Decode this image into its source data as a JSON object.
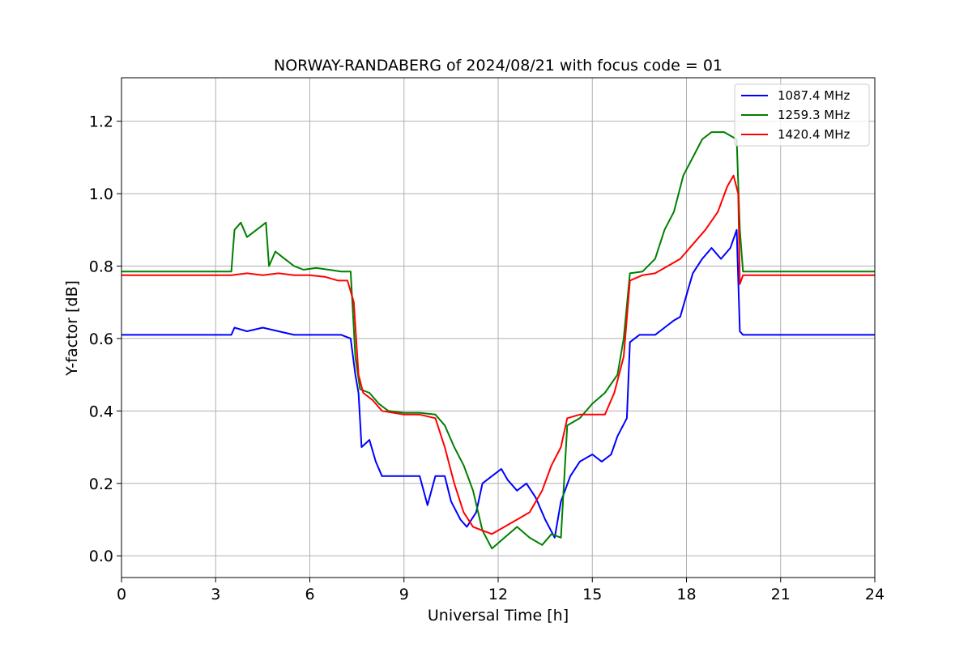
{
  "chart_data": {
    "type": "line",
    "title": "NORWAY-RANDABERG of 2024/08/21 with focus code = 01",
    "xlabel": "Universal Time [h]",
    "ylabel": "Y-factor [dB]",
    "xlim": [
      0,
      24
    ],
    "ylim": [
      -0.06,
      1.32
    ],
    "xticks": [
      0,
      3,
      6,
      9,
      12,
      15,
      18,
      21,
      24
    ],
    "yticks": [
      0.0,
      0.2,
      0.4,
      0.6,
      0.8,
      1.0,
      1.2
    ],
    "ytick_labels": [
      "0.0",
      "0.2",
      "0.4",
      "0.6",
      "0.8",
      "1.0",
      "1.2"
    ],
    "grid": true,
    "legend_position": "top-right",
    "series": [
      {
        "name": "1087.4 MHz",
        "color": "#0000ff",
        "points": [
          [
            0,
            0.61
          ],
          [
            3.5,
            0.61
          ],
          [
            3.6,
            0.63
          ],
          [
            4.0,
            0.62
          ],
          [
            4.5,
            0.63
          ],
          [
            5.0,
            0.62
          ],
          [
            5.5,
            0.61
          ],
          [
            6.5,
            0.61
          ],
          [
            7.0,
            0.61
          ],
          [
            7.3,
            0.6
          ],
          [
            7.45,
            0.5
          ],
          [
            7.55,
            0.45
          ],
          [
            7.65,
            0.3
          ],
          [
            7.9,
            0.32
          ],
          [
            8.1,
            0.26
          ],
          [
            8.3,
            0.22
          ],
          [
            9.0,
            0.22
          ],
          [
            9.5,
            0.22
          ],
          [
            9.75,
            0.14
          ],
          [
            10.0,
            0.22
          ],
          [
            10.3,
            0.22
          ],
          [
            10.5,
            0.15
          ],
          [
            10.8,
            0.1
          ],
          [
            11.0,
            0.08
          ],
          [
            11.3,
            0.12
          ],
          [
            11.5,
            0.2
          ],
          [
            11.8,
            0.22
          ],
          [
            12.1,
            0.24
          ],
          [
            12.3,
            0.21
          ],
          [
            12.6,
            0.18
          ],
          [
            12.9,
            0.2
          ],
          [
            13.2,
            0.16
          ],
          [
            13.5,
            0.1
          ],
          [
            13.8,
            0.05
          ],
          [
            14.0,
            0.15
          ],
          [
            14.3,
            0.22
          ],
          [
            14.6,
            0.26
          ],
          [
            15.0,
            0.28
          ],
          [
            15.3,
            0.26
          ],
          [
            15.6,
            0.28
          ],
          [
            15.8,
            0.33
          ],
          [
            16.1,
            0.38
          ],
          [
            16.2,
            0.59
          ],
          [
            16.5,
            0.61
          ],
          [
            17.0,
            0.61
          ],
          [
            17.3,
            0.63
          ],
          [
            17.6,
            0.65
          ],
          [
            17.8,
            0.66
          ],
          [
            18.0,
            0.72
          ],
          [
            18.2,
            0.78
          ],
          [
            18.5,
            0.82
          ],
          [
            18.8,
            0.85
          ],
          [
            19.1,
            0.82
          ],
          [
            19.4,
            0.85
          ],
          [
            19.6,
            0.9
          ],
          [
            19.7,
            0.62
          ],
          [
            19.8,
            0.61
          ],
          [
            21,
            0.61
          ],
          [
            24,
            0.61
          ]
        ]
      },
      {
        "name": "1259.3 MHz",
        "color": "#008000",
        "points": [
          [
            0,
            0.785
          ],
          [
            3.5,
            0.785
          ],
          [
            3.6,
            0.9
          ],
          [
            3.8,
            0.92
          ],
          [
            4.0,
            0.88
          ],
          [
            4.3,
            0.9
          ],
          [
            4.6,
            0.92
          ],
          [
            4.7,
            0.8
          ],
          [
            4.9,
            0.84
          ],
          [
            5.2,
            0.82
          ],
          [
            5.5,
            0.8
          ],
          [
            5.8,
            0.79
          ],
          [
            6.2,
            0.795
          ],
          [
            6.6,
            0.79
          ],
          [
            7.0,
            0.785
          ],
          [
            7.3,
            0.785
          ],
          [
            7.45,
            0.55
          ],
          [
            7.6,
            0.46
          ],
          [
            7.9,
            0.45
          ],
          [
            8.2,
            0.42
          ],
          [
            8.5,
            0.4
          ],
          [
            9.0,
            0.395
          ],
          [
            9.5,
            0.395
          ],
          [
            10.0,
            0.39
          ],
          [
            10.3,
            0.36
          ],
          [
            10.6,
            0.3
          ],
          [
            10.9,
            0.25
          ],
          [
            11.2,
            0.18
          ],
          [
            11.5,
            0.07
          ],
          [
            11.8,
            0.02
          ],
          [
            12.2,
            0.05
          ],
          [
            12.6,
            0.08
          ],
          [
            13.0,
            0.05
          ],
          [
            13.4,
            0.03
          ],
          [
            13.7,
            0.06
          ],
          [
            14.0,
            0.05
          ],
          [
            14.2,
            0.36
          ],
          [
            14.6,
            0.38
          ],
          [
            15.0,
            0.42
          ],
          [
            15.4,
            0.45
          ],
          [
            15.8,
            0.5
          ],
          [
            16.0,
            0.6
          ],
          [
            16.2,
            0.78
          ],
          [
            16.6,
            0.785
          ],
          [
            17.0,
            0.82
          ],
          [
            17.3,
            0.9
          ],
          [
            17.6,
            0.95
          ],
          [
            17.9,
            1.05
          ],
          [
            18.2,
            1.1
          ],
          [
            18.5,
            1.15
          ],
          [
            18.8,
            1.17
          ],
          [
            19.2,
            1.17
          ],
          [
            19.6,
            1.15
          ],
          [
            19.7,
            0.9
          ],
          [
            19.8,
            0.785
          ],
          [
            21,
            0.785
          ],
          [
            24,
            0.785
          ]
        ]
      },
      {
        "name": "1420.4 MHz",
        "color": "#ff0000",
        "points": [
          [
            0,
            0.775
          ],
          [
            3.5,
            0.775
          ],
          [
            4.0,
            0.78
          ],
          [
            4.5,
            0.775
          ],
          [
            5.0,
            0.78
          ],
          [
            5.5,
            0.775
          ],
          [
            6.0,
            0.775
          ],
          [
            6.5,
            0.77
          ],
          [
            6.9,
            0.76
          ],
          [
            7.2,
            0.76
          ],
          [
            7.4,
            0.7
          ],
          [
            7.55,
            0.5
          ],
          [
            7.7,
            0.45
          ],
          [
            8.0,
            0.43
          ],
          [
            8.3,
            0.4
          ],
          [
            9.0,
            0.39
          ],
          [
            9.5,
            0.39
          ],
          [
            10.0,
            0.38
          ],
          [
            10.3,
            0.3
          ],
          [
            10.6,
            0.2
          ],
          [
            10.9,
            0.12
          ],
          [
            11.2,
            0.08
          ],
          [
            11.5,
            0.07
          ],
          [
            11.8,
            0.06
          ],
          [
            12.2,
            0.08
          ],
          [
            12.6,
            0.1
          ],
          [
            13.0,
            0.12
          ],
          [
            13.4,
            0.18
          ],
          [
            13.7,
            0.25
          ],
          [
            14.0,
            0.3
          ],
          [
            14.2,
            0.38
          ],
          [
            14.6,
            0.39
          ],
          [
            15.0,
            0.39
          ],
          [
            15.4,
            0.39
          ],
          [
            15.7,
            0.45
          ],
          [
            16.0,
            0.55
          ],
          [
            16.2,
            0.76
          ],
          [
            16.6,
            0.775
          ],
          [
            17.0,
            0.78
          ],
          [
            17.4,
            0.8
          ],
          [
            17.8,
            0.82
          ],
          [
            18.2,
            0.86
          ],
          [
            18.6,
            0.9
          ],
          [
            19.0,
            0.95
          ],
          [
            19.3,
            1.02
          ],
          [
            19.5,
            1.05
          ],
          [
            19.65,
            1.0
          ],
          [
            19.7,
            0.75
          ],
          [
            19.8,
            0.775
          ],
          [
            21,
            0.775
          ],
          [
            24,
            0.775
          ]
        ]
      }
    ]
  }
}
